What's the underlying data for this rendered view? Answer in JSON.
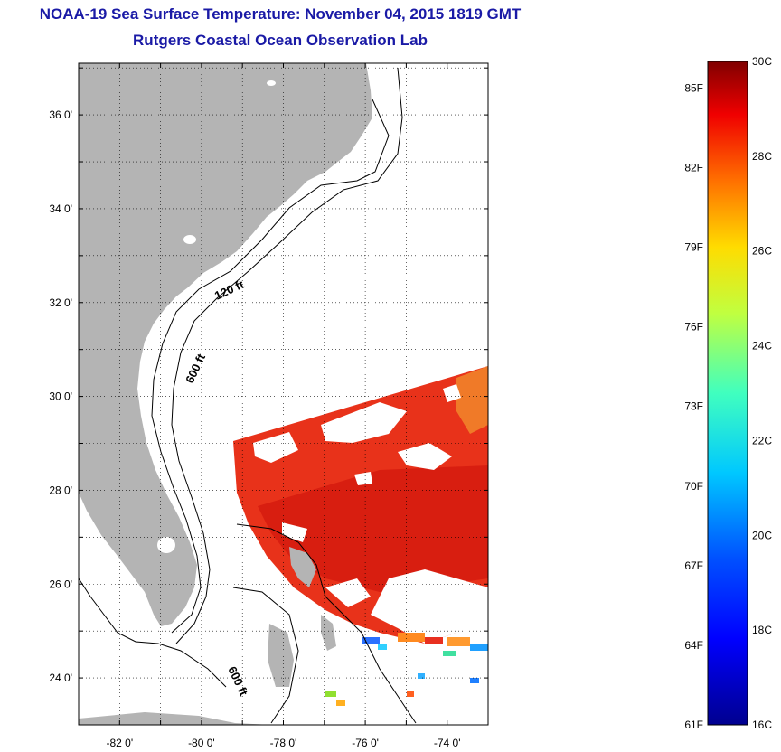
{
  "title": {
    "line1": "NOAA-19 Sea Surface Temperature:  November 04, 2015 1819 GMT",
    "line2": "Rutgers Coastal Ocean Observation Lab"
  },
  "map": {
    "lon_range": [
      -83,
      -73
    ],
    "lat_range": [
      23,
      37.1
    ],
    "lat_ticks": [
      "36 0'",
      "34 0'",
      "32 0'",
      "30 0'",
      "28 0'",
      "26 0'",
      "24 0'"
    ],
    "lon_ticks": [
      "-82 0'",
      "-80 0'",
      "-78 0'",
      "-76 0'",
      "-74 0'"
    ],
    "isobath_labels": [
      "120 ft",
      "600 ft",
      "600 ft"
    ],
    "colors": {
      "land": "#b4b4b4",
      "ocean_bg": "#ffffff",
      "sst_main": "#e8321a",
      "sst_warm": "#d81e10",
      "sst_edge": "#f07a28"
    }
  },
  "colorbar": {
    "fahrenheit_labels": [
      "85F",
      "82F",
      "79F",
      "76F",
      "73F",
      "70F",
      "67F",
      "64F",
      "61F"
    ],
    "celsius_labels": [
      "30C",
      "28C",
      "26C",
      "24C",
      "22C",
      "20C",
      "18C",
      "16C"
    ],
    "range_c": [
      16,
      30
    ],
    "range_f": [
      61,
      86
    ]
  }
}
